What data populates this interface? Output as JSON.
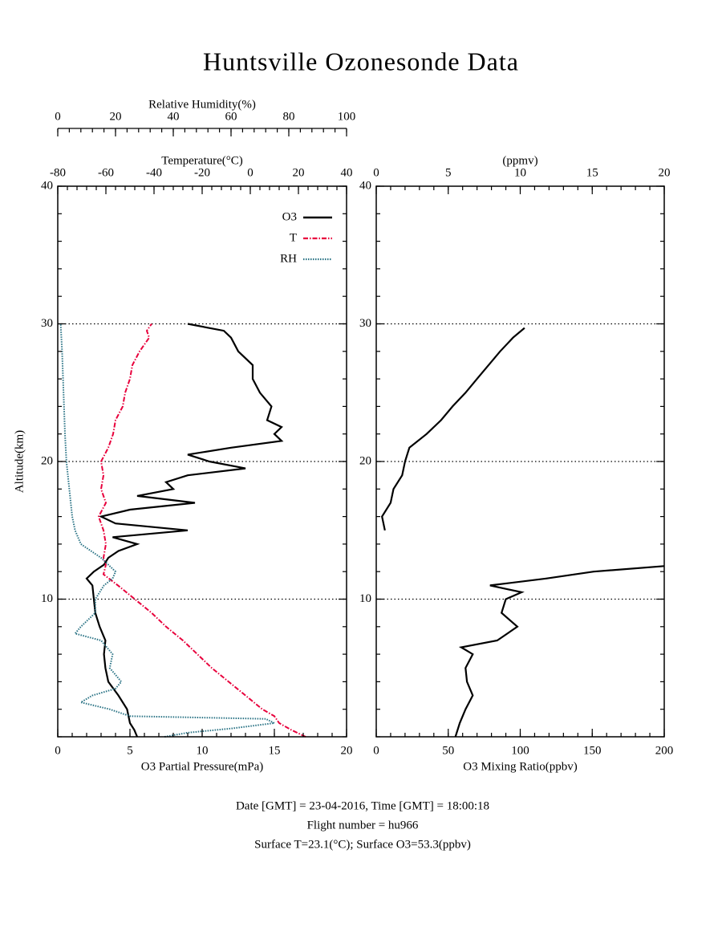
{
  "title": "Huntsville Ozonesonde Data",
  "footer": [
    "Date [GMT] = 23-04-2016,  Time [GMT] = 18:00:18",
    "Flight number = hu966",
    "Surface T=23.1(°C); Surface O3=53.3(ppbv)"
  ],
  "chart_data": [
    {
      "type": "line",
      "xlabel": "O3 Partial Pressure(mPa)",
      "xlim": [
        0,
        20
      ],
      "xticks": [
        0,
        5,
        10,
        15,
        20
      ],
      "x2label": "Temperature(°C)",
      "x2lim": [
        -80,
        40
      ],
      "x2ticks": [
        -80,
        -60,
        -40,
        -20,
        0,
        20,
        40
      ],
      "x3label": "Relative Humidity(%)",
      "x3lim": [
        0,
        100
      ],
      "x3ticks": [
        0,
        20,
        40,
        60,
        80,
        100
      ],
      "ylabel": "Altitude(km)",
      "ylim": [
        0,
        40
      ],
      "yticks": [
        10,
        20,
        30,
        40
      ],
      "grid": true,
      "legend": "upper right",
      "series": [
        {
          "name": "O3",
          "color": "#000000",
          "style": "solid",
          "axis": "x",
          "altitude": [
            0,
            0.5,
            1,
            2,
            3,
            4,
            5,
            6,
            7,
            8,
            9,
            10,
            11,
            11.5,
            12,
            12.5,
            13,
            13.5,
            14,
            14.5,
            15,
            15.5,
            16,
            16.5,
            17,
            17.5,
            18,
            18.5,
            19,
            19.5,
            20,
            20.5,
            21,
            21.5,
            22,
            22.5,
            23,
            24,
            25,
            26,
            27,
            28,
            29,
            29.5,
            30
          ],
          "values": [
            5.5,
            5.3,
            5.0,
            4.8,
            4.2,
            3.5,
            3.3,
            3.2,
            3.3,
            2.9,
            2.6,
            2.5,
            2.4,
            2.0,
            2.5,
            3.2,
            3.5,
            4.2,
            5.5,
            3.8,
            9.0,
            4.0,
            3.0,
            5.0,
            9.5,
            5.5,
            8.0,
            7.5,
            9.0,
            13.0,
            10.5,
            9.0,
            12.0,
            15.5,
            15.0,
            15.5,
            14.5,
            14.8,
            14.0,
            13.5,
            13.5,
            12.5,
            12.0,
            11.5,
            9.0
          ]
        },
        {
          "name": "T",
          "color": "#e8003c",
          "style": "dashdot",
          "axis": "x2",
          "altitude": [
            0,
            0.5,
            1,
            1.5,
            2,
            3,
            4,
            5,
            6,
            7,
            8,
            9,
            10,
            11,
            11.8,
            12.5,
            13,
            14,
            15,
            16,
            17,
            18,
            19,
            20,
            21,
            22,
            23,
            24,
            25,
            26,
            27,
            28,
            29,
            29.5,
            30
          ],
          "values": [
            23,
            17,
            12,
            10,
            5,
            -2,
            -9,
            -16,
            -22,
            -28,
            -35,
            -41,
            -48,
            -55,
            -61,
            -60,
            -61,
            -60,
            -61,
            -63,
            -60,
            -62,
            -61,
            -62,
            -59,
            -57,
            -56,
            -53,
            -52,
            -50,
            -49,
            -46,
            -42,
            -43,
            -41
          ]
        },
        {
          "name": "RH",
          "color": "#2a7385",
          "style": "dotted",
          "axis": "x3",
          "altitude": [
            0,
            0.3,
            0.6,
            1,
            1.3,
            1.5,
            2,
            2.5,
            3,
            3.5,
            4,
            4.5,
            5,
            6,
            7,
            7.5,
            8,
            9,
            10,
            11,
            11.5,
            12,
            13,
            14,
            15,
            16,
            18,
            20,
            22,
            25,
            28,
            30
          ],
          "values": [
            37,
            45,
            60,
            75,
            72,
            25,
            18,
            8,
            12,
            20,
            22,
            20,
            18,
            19,
            15,
            6,
            8,
            13,
            13,
            16,
            19,
            20,
            15,
            8,
            6,
            5,
            4,
            3,
            2.5,
            2,
            1.5,
            1
          ]
        }
      ]
    },
    {
      "type": "line",
      "xlabel": "O3 Mixing Ratio(ppbv)",
      "xlim": [
        0,
        200
      ],
      "xticks": [
        0,
        50,
        100,
        150,
        200
      ],
      "x2label": "(ppmv)",
      "x2lim": [
        0,
        20
      ],
      "x2ticks": [
        0,
        5,
        10,
        15,
        20
      ],
      "ylim": [
        0,
        40
      ],
      "yticks": [
        10,
        20,
        30,
        40
      ],
      "grid": true,
      "series": [
        {
          "color": "#000000",
          "style": "solid",
          "axis": "x",
          "altitude": [
            0,
            1,
            2,
            3,
            4,
            5,
            6,
            6.5,
            7,
            8,
            9,
            10,
            10.5,
            11,
            11.5,
            12,
            12.4
          ],
          "values": [
            55,
            58,
            62,
            67,
            63,
            62,
            67,
            59,
            84,
            98,
            87,
            90,
            101,
            79,
            118,
            151,
            200
          ]
        },
        {
          "color": "#000000",
          "style": "solid",
          "axis": "x2",
          "altitude": [
            15,
            16,
            17,
            18,
            19,
            20,
            21,
            22,
            23,
            24,
            25,
            26,
            27,
            28,
            29,
            29.7
          ],
          "values": [
            0.6,
            0.4,
            1.0,
            1.2,
            1.8,
            2.0,
            2.3,
            3.5,
            4.5,
            5.3,
            6.2,
            7.0,
            7.8,
            8.6,
            9.5,
            10.3
          ]
        }
      ]
    }
  ]
}
